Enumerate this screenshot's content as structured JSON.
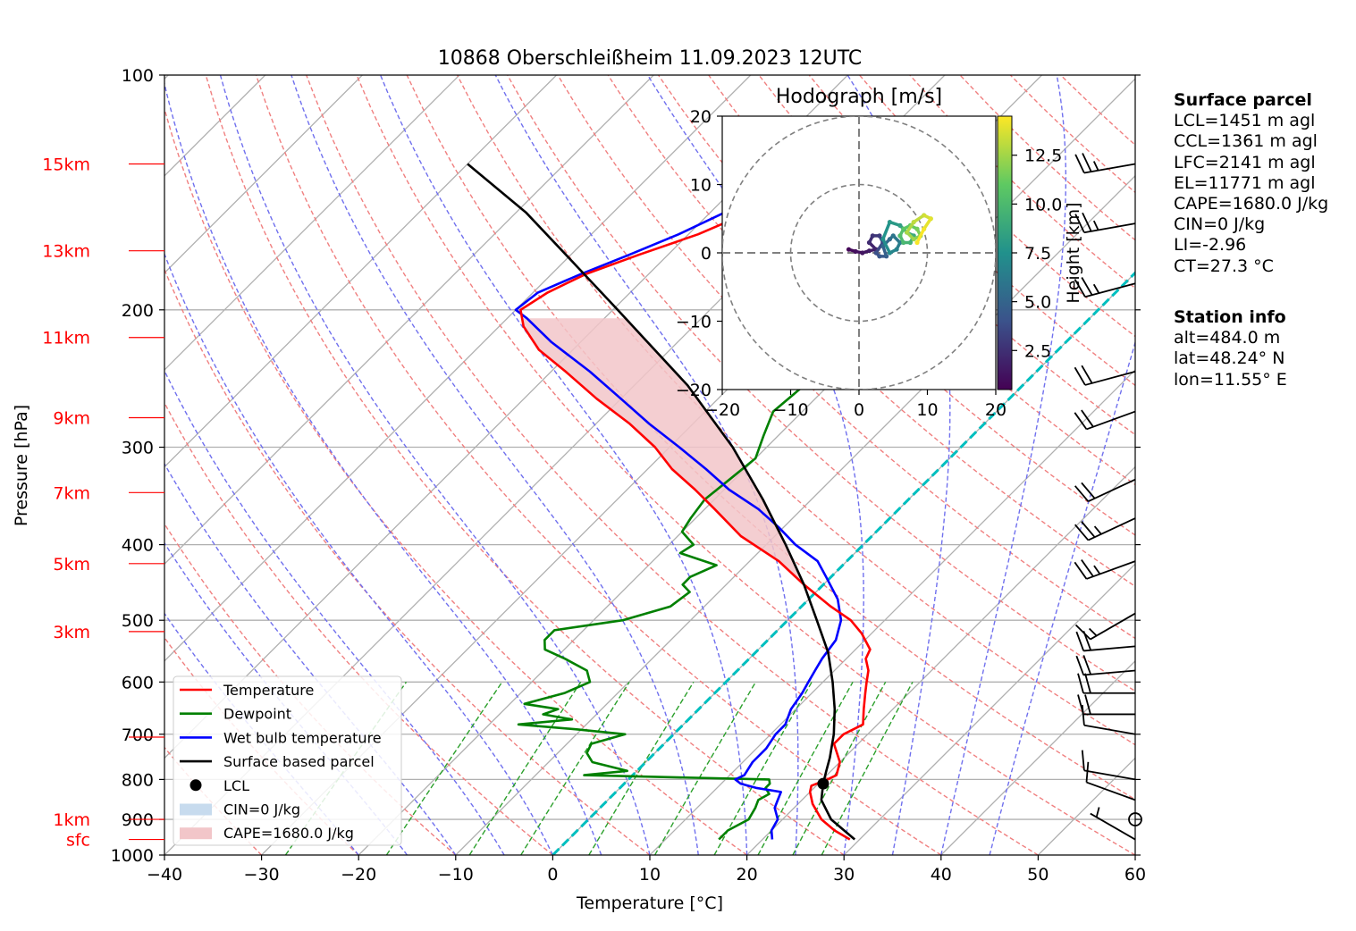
{
  "colors": {
    "temperature": "#ff0000",
    "dewpoint": "#008000",
    "wetbulb": "#0000ff",
    "parcel": "#000000",
    "cape_fill": "#f2c6c9",
    "cin_fill": "#c7dbee",
    "dry_adiabat": "#f08080",
    "moist_adiabat": "#7070ee",
    "mixing_ratio": "#2ca02c",
    "freezing_isotherm": "#00bfbf",
    "height_label": "#ff0000"
  },
  "chart_data": [
    {
      "type": "line",
      "subtype": "skew-t log-p",
      "title": "10868 Oberschleißheim 11.09.2023 12UTC",
      "xlabel": "Temperature [°C]",
      "ylabel": "Pressure [hPa]",
      "xlim": [
        -40,
        60
      ],
      "ylim": [
        1000,
        100
      ],
      "y_scale": "log",
      "grid": true,
      "x_ticks": [
        "−40",
        "−30",
        "−20",
        "−10",
        "0",
        "10",
        "20",
        "30",
        "40",
        "50",
        "60"
      ],
      "pressure_ticks": [
        {
          "p": 100,
          "label": "100"
        },
        {
          "p": 200,
          "label": "200"
        },
        {
          "p": 300,
          "label": "300"
        },
        {
          "p": 400,
          "label": "400"
        },
        {
          "p": 500,
          "label": "500"
        },
        {
          "p": 600,
          "label": "600"
        },
        {
          "p": 700,
          "label": "700"
        },
        {
          "p": 800,
          "label": "800"
        },
        {
          "p": 900,
          "label": "900"
        },
        {
          "p": 1000,
          "label": "1000"
        }
      ],
      "height_labels": [
        {
          "p": 130,
          "label": "15km"
        },
        {
          "p": 168,
          "label": "13km"
        },
        {
          "p": 217,
          "label": "11km"
        },
        {
          "p": 275,
          "label": "9km"
        },
        {
          "p": 343,
          "label": "7km"
        },
        {
          "p": 423,
          "label": "5km"
        },
        {
          "p": 517,
          "label": "3km"
        },
        {
          "p": 706,
          "label": ""
        },
        {
          "p": 900,
          "label": "1km"
        },
        {
          "p": 955,
          "label": "sfc"
        }
      ],
      "legend_position": "bottom-left",
      "legend": [
        {
          "key": "temperature",
          "label": "Temperature",
          "kind": "line"
        },
        {
          "key": "dewpoint",
          "label": "Dewpoint",
          "kind": "line"
        },
        {
          "key": "wetbulb",
          "label": "Wet bulb temperature",
          "kind": "line"
        },
        {
          "key": "parcel",
          "label": "Surface based parcel",
          "kind": "line"
        },
        {
          "key": "lcl",
          "label": "LCL",
          "kind": "dot"
        },
        {
          "key": "cin",
          "label": "CIN=0 J/kg",
          "kind": "patch"
        },
        {
          "key": "cape",
          "label": "CAPE=1680.0 J/kg",
          "kind": "patch"
        }
      ],
      "lcl": {
        "p": 810,
        "t": 20.5
      },
      "series": [
        {
          "key": "temperature",
          "p": [
            955,
            930,
            900,
            860,
            830,
            815,
            800,
            790,
            760,
            720,
            700,
            680,
            650,
            620,
            600,
            580,
            560,
            545,
            520,
            500,
            480,
            450,
            420,
            390,
            360,
            340,
            320,
            300,
            280,
            260,
            240,
            225,
            210,
            200,
            190,
            180,
            170,
            160,
            150,
            140,
            130,
            125
          ],
          "t": [
            29.0,
            26.5,
            24.0,
            21.5,
            20.0,
            19.5,
            20.5,
            21.0,
            20.0,
            17.5,
            17.5,
            18.5,
            17.0,
            15.5,
            14.5,
            13.5,
            12.0,
            11.5,
            9.0,
            6.5,
            3.0,
            -2.0,
            -7.0,
            -13.5,
            -19.0,
            -23.0,
            -27.5,
            -31.5,
            -36.5,
            -42.5,
            -48.5,
            -53.5,
            -57.5,
            -59.5,
            -58.5,
            -56.5,
            -53.0,
            -49.0,
            -46.0,
            -42.5,
            -38.0,
            -36.0
          ]
        },
        {
          "key": "dewpoint",
          "p": [
            955,
            930,
            900,
            870,
            850,
            835,
            820,
            810,
            800,
            790,
            780,
            760,
            740,
            720,
            700,
            690,
            680,
            670,
            660,
            650,
            640,
            620,
            600,
            580,
            560,
            545,
            530,
            515,
            500,
            480,
            460,
            450,
            440,
            425,
            410,
            400,
            385,
            370,
            350,
            330,
            310,
            290,
            270,
            250,
            230,
            210,
            200,
            190,
            180,
            170,
            160,
            150,
            140,
            130,
            125
          ],
          "t": [
            15.5,
            15.5,
            16.5,
            16.0,
            15.5,
            16.0,
            15.0,
            15.0,
            14.5,
            -5.0,
            -1.0,
            -5.5,
            -7.0,
            -7.5,
            -5.0,
            -10.5,
            -17.0,
            -12.0,
            -15.5,
            -14.5,
            -18.5,
            -15.5,
            -14.0,
            -15.5,
            -19.0,
            -22.0,
            -23.0,
            -23.0,
            -17.0,
            -13.5,
            -13.0,
            -14.5,
            -14.5,
            -13.0,
            -18.0,
            -17.5,
            -20.0,
            -20.5,
            -21.0,
            -20.5,
            -20.0,
            -21.5,
            -23.0,
            -22.5,
            -24.0,
            -25.5,
            -26.5,
            -29.0,
            -31.5,
            -35.0,
            -38.0,
            -42.0,
            -46.0,
            -51.0,
            -54.0
          ]
        },
        {
          "key": "wetbulb",
          "p": [
            955,
            930,
            900,
            870,
            850,
            830,
            820,
            810,
            800,
            790,
            760,
            730,
            700,
            680,
            650,
            620,
            600,
            580,
            560,
            530,
            500,
            470,
            440,
            420,
            400,
            380,
            360,
            340,
            320,
            300,
            280,
            260,
            240,
            220,
            205,
            200,
            190,
            180,
            170,
            160,
            150,
            140,
            130,
            125
          ],
          "t": [
            21.0,
            20.0,
            19.5,
            18.0,
            17.5,
            17.0,
            14.0,
            12.0,
            11.0,
            11.5,
            11.0,
            11.0,
            10.5,
            10.5,
            9.5,
            9.0,
            8.5,
            8.0,
            7.5,
            7.0,
            5.5,
            3.0,
            -0.5,
            -3.0,
            -7.0,
            -10.5,
            -14.5,
            -19.5,
            -24.0,
            -29.0,
            -34.5,
            -40.0,
            -46.0,
            -53.0,
            -58.0,
            -60.0,
            -59.5,
            -57.0,
            -54.0,
            -51.0,
            -48.5,
            -45.0,
            -40.0,
            -38.0
          ]
        },
        {
          "key": "parcel",
          "p": [
            955,
            900,
            850,
            810,
            780,
            750,
            700,
            650,
            600,
            550,
            500,
            450,
            400,
            350,
            300,
            250,
            200,
            170,
            150,
            130
          ],
          "t": [
            29.5,
            25.0,
            22.0,
            20.5,
            19.5,
            18.5,
            16.5,
            14.0,
            11.0,
            7.5,
            3.0,
            -2.0,
            -8.0,
            -15.0,
            -23.5,
            -34.5,
            -49.5,
            -60.5,
            -69.0,
            -80.0
          ]
        }
      ],
      "isotherm_zero": {
        "key": "freezing_isotherm",
        "t": 0
      }
    },
    {
      "type": "scatter",
      "subtype": "hodograph",
      "title": "Hodograph [m/s]",
      "xlim": [
        -20,
        20
      ],
      "ylim": [
        -20,
        20
      ],
      "x_ticks": [
        "−20",
        "−10",
        "0",
        "10",
        "20"
      ],
      "y_ticks": [
        "20",
        "10",
        "0",
        "−10",
        "−20"
      ],
      "rings": [
        10,
        20
      ],
      "colorbar": {
        "label": "Height [km]",
        "range": [
          0.5,
          14.5
        ],
        "ticks": [
          "2.5",
          "5.0",
          "7.5",
          "10.0",
          "12.5"
        ]
      },
      "u": [
        -1.5,
        -0.5,
        0.5,
        1.5,
        2.5,
        1.5,
        2.0,
        3.0,
        3.5,
        2.5,
        3.0,
        4.0,
        3.5,
        4.5,
        5.0,
        6.0,
        5.5,
        4.5,
        3.5,
        4.5,
        6.0,
        7.0,
        8.0,
        7.5,
        6.5,
        6.0,
        6.5,
        7.5,
        8.5,
        9.0,
        8.0,
        7.0,
        8.0,
        9.5,
        10.5,
        9.5,
        8.5
      ],
      "v": [
        0.5,
        0.2,
        0.0,
        0.3,
        0.5,
        1.5,
        2.5,
        2.5,
        1.5,
        0.0,
        -0.5,
        -0.5,
        1.0,
        2.0,
        2.5,
        1.5,
        0.5,
        0.0,
        2.0,
        4.5,
        4.0,
        3.0,
        2.5,
        1.5,
        1.5,
        2.5,
        3.5,
        4.0,
        3.5,
        2.5,
        2.0,
        3.0,
        4.5,
        5.5,
        5.0,
        3.5,
        1.5
      ],
      "h": [
        0.5,
        0.8,
        1.1,
        1.4,
        1.7,
        2.0,
        2.4,
        2.8,
        3.2,
        3.6,
        4.0,
        4.4,
        4.8,
        5.2,
        5.6,
        6.0,
        6.4,
        6.8,
        7.2,
        7.6,
        8.0,
        8.4,
        8.8,
        9.2,
        9.6,
        10.0,
        10.4,
        10.8,
        11.2,
        11.6,
        12.0,
        12.4,
        12.8,
        13.2,
        13.6,
        14.0,
        14.4
      ]
    }
  ],
  "wind_barbs": [
    {
      "p": 955,
      "spd": 5,
      "dir": 300
    },
    {
      "p": 900,
      "spd": 0,
      "dir": 0
    },
    {
      "p": 850,
      "spd": 10,
      "dir": 290
    },
    {
      "p": 800,
      "spd": 10,
      "dir": 280
    },
    {
      "p": 700,
      "spd": 10,
      "dir": 280
    },
    {
      "p": 660,
      "spd": 20,
      "dir": 270
    },
    {
      "p": 620,
      "spd": 20,
      "dir": 270
    },
    {
      "p": 580,
      "spd": 20,
      "dir": 265
    },
    {
      "p": 540,
      "spd": 20,
      "dir": 265
    },
    {
      "p": 490,
      "spd": 15,
      "dir": 240
    },
    {
      "p": 420,
      "spd": 25,
      "dir": 250
    },
    {
      "p": 370,
      "spd": 25,
      "dir": 245
    },
    {
      "p": 330,
      "spd": 20,
      "dir": 245
    },
    {
      "p": 270,
      "spd": 20,
      "dir": 250
    },
    {
      "p": 240,
      "spd": 20,
      "dir": 255
    },
    {
      "p": 185,
      "spd": 25,
      "dir": 255
    },
    {
      "p": 155,
      "spd": 25,
      "dir": 260
    },
    {
      "p": 130,
      "spd": 25,
      "dir": 260
    }
  ],
  "info": {
    "surface_header": "Surface parcel",
    "surface_lines": [
      "LCL=1451 m agl",
      "CCL=1361 m agl",
      "LFC=2141 m agl",
      "EL=11771 m agl",
      "CAPE=1680.0 J/kg",
      "CIN=0 J/kg",
      "LI=-2.96",
      "CT=27.3 °C"
    ],
    "station_header": "Station info",
    "station_lines": [
      "alt=484.0 m",
      "lat=48.24° N",
      "lon=11.55° E"
    ]
  }
}
